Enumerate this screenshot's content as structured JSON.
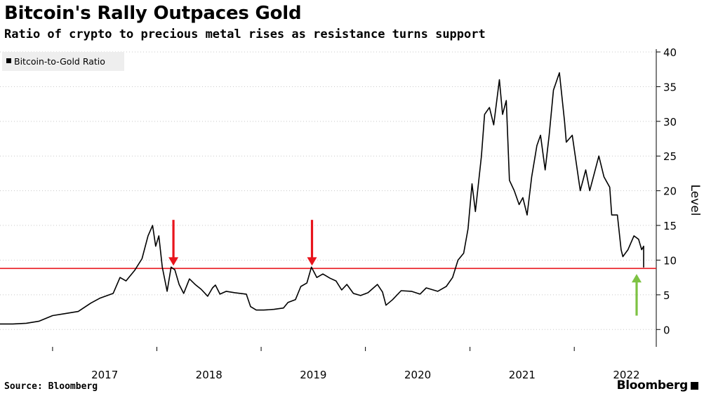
{
  "header": {
    "title": "Bitcoin's Rally Outpaces Gold",
    "subtitle": "Ratio of crypto to precious metal rises as resistance turns support"
  },
  "footer": {
    "source": "Source: Bloomberg",
    "brand": "Bloomberg"
  },
  "colors": {
    "series": "#000000",
    "support_line": "#e8141c",
    "red_arrow": "#e8141c",
    "green_arrow": "#7dc242",
    "grid": "#c8c8c8",
    "legend_bg": "#eeeeee"
  },
  "chart_data": {
    "type": "line",
    "title": "Bitcoin's Rally Outpaces Gold",
    "subtitle": "Ratio of crypto to precious metal rises as resistance turns support",
    "ylabel": "Level",
    "y_axis_side": "right",
    "ylim": [
      -2.5,
      40
    ],
    "yticks": [
      0,
      5,
      10,
      15,
      20,
      25,
      30,
      35,
      40
    ],
    "xlim": [
      "2016-07-01",
      "2022-10-15"
    ],
    "xticks": [
      {
        "label": "2017",
        "x": "2017-01-01"
      },
      {
        "label": "2018",
        "x": "2018-01-01"
      },
      {
        "label": "2019",
        "x": "2019-01-01"
      },
      {
        "label": "2020",
        "x": "2020-01-01"
      },
      {
        "label": "2021",
        "x": "2021-01-01"
      },
      {
        "label": "2022",
        "x": "2022-01-01"
      }
    ],
    "grid": "horizontal dotted",
    "legend": {
      "position": "top-left",
      "entries": [
        "Bitcoin-to-Gold Ratio"
      ]
    },
    "series": [
      {
        "name": "Bitcoin-to-Gold Ratio",
        "points": [
          [
            "2016-07-01",
            0.8
          ],
          [
            "2016-08-15",
            0.8
          ],
          [
            "2016-10-01",
            0.9
          ],
          [
            "2016-11-15",
            1.2
          ],
          [
            "2017-01-01",
            2.0
          ],
          [
            "2017-02-15",
            2.3
          ],
          [
            "2017-04-01",
            2.6
          ],
          [
            "2017-05-15",
            3.8
          ],
          [
            "2017-06-15",
            4.5
          ],
          [
            "2017-08-01",
            5.2
          ],
          [
            "2017-08-25",
            7.5
          ],
          [
            "2017-09-15",
            7.0
          ],
          [
            "2017-10-15",
            8.5
          ],
          [
            "2017-11-10",
            10.2
          ],
          [
            "2017-12-01",
            13.5
          ],
          [
            "2017-12-17",
            15.0
          ],
          [
            "2017-12-28",
            12.0
          ],
          [
            "2018-01-08",
            13.5
          ],
          [
            "2018-01-20",
            9.0
          ],
          [
            "2018-02-06",
            5.5
          ],
          [
            "2018-02-20",
            9.0
          ],
          [
            "2018-03-05",
            8.6
          ],
          [
            "2018-03-20",
            6.5
          ],
          [
            "2018-04-05",
            5.2
          ],
          [
            "2018-04-25",
            7.3
          ],
          [
            "2018-05-15",
            6.5
          ],
          [
            "2018-06-05",
            5.8
          ],
          [
            "2018-06-28",
            4.8
          ],
          [
            "2018-07-15",
            6.0
          ],
          [
            "2018-07-25",
            6.4
          ],
          [
            "2018-08-10",
            5.1
          ],
          [
            "2018-09-01",
            5.5
          ],
          [
            "2018-10-01",
            5.3
          ],
          [
            "2018-11-10",
            5.1
          ],
          [
            "2018-11-25",
            3.3
          ],
          [
            "2018-12-15",
            2.8
          ],
          [
            "2019-01-10",
            2.8
          ],
          [
            "2019-02-15",
            2.9
          ],
          [
            "2019-03-20",
            3.1
          ],
          [
            "2019-04-05",
            3.9
          ],
          [
            "2019-05-01",
            4.3
          ],
          [
            "2019-05-20",
            6.2
          ],
          [
            "2019-06-10",
            6.7
          ],
          [
            "2019-06-26",
            9.0
          ],
          [
            "2019-07-15",
            7.5
          ],
          [
            "2019-08-05",
            8.0
          ],
          [
            "2019-08-30",
            7.4
          ],
          [
            "2019-09-20",
            7.0
          ],
          [
            "2019-10-10",
            5.7
          ],
          [
            "2019-10-28",
            6.5
          ],
          [
            "2019-11-20",
            5.2
          ],
          [
            "2019-12-15",
            4.9
          ],
          [
            "2020-01-10",
            5.3
          ],
          [
            "2020-02-12",
            6.5
          ],
          [
            "2020-03-01",
            5.4
          ],
          [
            "2020-03-13",
            3.5
          ],
          [
            "2020-04-05",
            4.3
          ],
          [
            "2020-05-05",
            5.6
          ],
          [
            "2020-06-10",
            5.5
          ],
          [
            "2020-07-10",
            5.1
          ],
          [
            "2020-08-01",
            6.0
          ],
          [
            "2020-09-10",
            5.5
          ],
          [
            "2020-10-10",
            6.2
          ],
          [
            "2020-11-01",
            7.5
          ],
          [
            "2020-11-20",
            10.0
          ],
          [
            "2020-12-10",
            11.0
          ],
          [
            "2020-12-25",
            14.5
          ],
          [
            "2021-01-08",
            21.0
          ],
          [
            "2021-01-20",
            17.0
          ],
          [
            "2021-02-10",
            25.0
          ],
          [
            "2021-02-21",
            31.0
          ],
          [
            "2021-03-10",
            32.0
          ],
          [
            "2021-03-25",
            29.5
          ],
          [
            "2021-04-14",
            36.0
          ],
          [
            "2021-04-25",
            31.0
          ],
          [
            "2021-05-08",
            33.0
          ],
          [
            "2021-05-19",
            21.5
          ],
          [
            "2021-06-05",
            20.0
          ],
          [
            "2021-06-22",
            18.0
          ],
          [
            "2021-07-05",
            19.0
          ],
          [
            "2021-07-20",
            16.5
          ],
          [
            "2021-08-05",
            22.0
          ],
          [
            "2021-08-23",
            26.5
          ],
          [
            "2021-09-05",
            28.0
          ],
          [
            "2021-09-21",
            23.0
          ],
          [
            "2021-10-05",
            28.0
          ],
          [
            "2021-10-20",
            34.5
          ],
          [
            "2021-11-10",
            37.0
          ],
          [
            "2021-11-28",
            30.0
          ],
          [
            "2021-12-04",
            27.0
          ],
          [
            "2021-12-25",
            28.0
          ],
          [
            "2022-01-22",
            20.0
          ],
          [
            "2022-02-10",
            23.0
          ],
          [
            "2022-02-24",
            20.0
          ],
          [
            "2022-03-28",
            25.0
          ],
          [
            "2022-04-15",
            22.0
          ],
          [
            "2022-05-05",
            20.5
          ],
          [
            "2022-05-12",
            16.5
          ],
          [
            "2022-06-01",
            16.5
          ],
          [
            "2022-06-14",
            11.5
          ],
          [
            "2022-06-20",
            10.5
          ],
          [
            "2022-07-08",
            11.5
          ],
          [
            "2022-07-29",
            13.5
          ],
          [
            "2022-08-14",
            13.0
          ],
          [
            "2022-08-25",
            11.5
          ],
          [
            "2022-09-12",
            12.0
          ],
          [
            "2022-09-20",
            10.5
          ],
          [
            "2022-10-04",
            11.0
          ],
          [
            "2022-10-20",
            12.0
          ],
          [
            "2022-10-25",
            10.5
          ],
          [
            "2022-11-09",
            9.0
          ],
          [
            "2022-11-25",
            9.0
          ],
          [
            "2022-12-15",
            9.2
          ],
          [
            "2022-12-28",
            9.0
          ],
          [
            "2023-01-10",
            9.5
          ],
          [
            "2023-01-20",
            11.0
          ]
        ]
      }
    ],
    "reference_lines": [
      {
        "type": "horizontal",
        "y": 8.8,
        "color": "#e8141c"
      }
    ],
    "annotations": [
      {
        "type": "arrow-down",
        "x": "2018-02-28",
        "color": "#e8141c"
      },
      {
        "type": "arrow-down",
        "x": "2019-06-28",
        "color": "#e8141c"
      },
      {
        "type": "arrow-up",
        "x": "2022-11-18",
        "color": "#7dc242"
      }
    ]
  }
}
